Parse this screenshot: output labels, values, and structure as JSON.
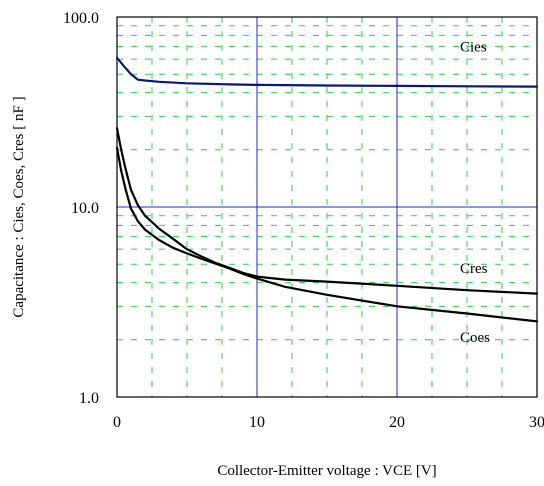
{
  "chart_data": {
    "type": "line",
    "xlabel": "Collector-Emitter voltage : VCE [V]",
    "ylabel": "Capacitance  :  Cies, Coes, Cres  [ nF ]",
    "xlim": [
      0,
      30
    ],
    "ylim": [
      1,
      100
    ],
    "yscale": "log",
    "x_ticks": [
      0,
      10,
      20,
      30
    ],
    "x_tick_labels": [
      "0",
      "10",
      "20",
      "30"
    ],
    "y_ticks": [
      1,
      10,
      100
    ],
    "y_tick_labels": [
      "1.0",
      "10.0",
      "100.0"
    ],
    "grid": "major blue solid, minor green dashed",
    "series": [
      {
        "name": "Cies",
        "color": "#0a1a6e",
        "x": [
          0,
          0.5,
          1,
          1.5,
          2,
          3,
          5,
          8,
          10,
          15,
          20,
          25,
          30
        ],
        "y": [
          61,
          55,
          50,
          46.8,
          46.3,
          45.6,
          44.8,
          44.2,
          43.9,
          43.6,
          43.4,
          43.2,
          43.0
        ]
      },
      {
        "name": "Cres",
        "color": "#000000",
        "x": [
          0,
          0.3,
          0.6,
          1,
          1.5,
          2,
          3,
          4,
          5,
          6,
          7,
          8,
          9,
          10,
          12,
          15,
          20,
          25,
          30
        ],
        "y": [
          26,
          20,
          16,
          12.3,
          10.2,
          9.0,
          7.7,
          6.8,
          6.0,
          5.5,
          5.1,
          4.8,
          4.5,
          4.3,
          4.15,
          4.05,
          3.85,
          3.65,
          3.5
        ]
      },
      {
        "name": "Coes",
        "color": "#000000",
        "x": [
          0,
          0.3,
          0.6,
          1,
          1.5,
          2,
          3,
          4,
          5,
          6,
          7,
          8,
          9,
          10,
          12,
          15,
          20,
          25,
          30
        ],
        "y": [
          20.5,
          15.5,
          12.5,
          9.8,
          8.4,
          7.6,
          6.7,
          6.1,
          5.7,
          5.35,
          5.05,
          4.75,
          4.45,
          4.2,
          3.8,
          3.45,
          3.0,
          2.75,
          2.5
        ]
      }
    ],
    "annotations": [
      {
        "text": "Cies",
        "x": 24.5,
        "y": 66
      },
      {
        "text": "Cres",
        "x": 24.5,
        "y": 4.5
      },
      {
        "text": "Coes",
        "x": 24.5,
        "y": 1.95
      }
    ]
  }
}
